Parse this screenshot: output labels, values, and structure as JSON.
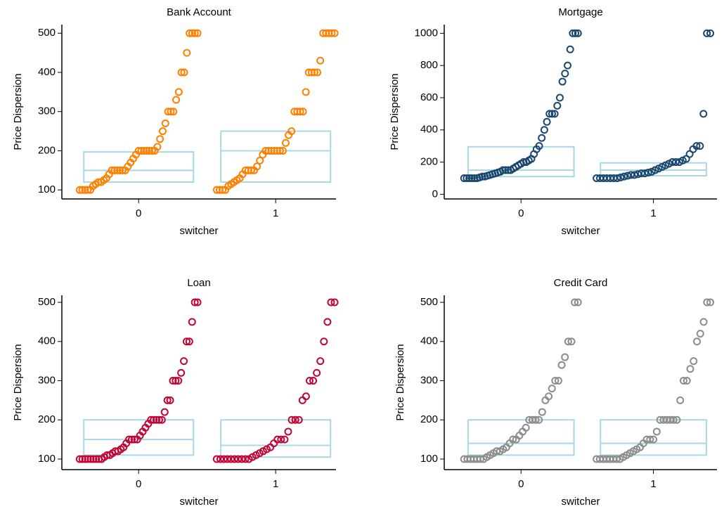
{
  "chart_data": [
    {
      "type": "strip",
      "title": "Bank Account",
      "xlabel": "switcher",
      "ylabel": "Price Dispersion",
      "color": "#ff8000",
      "box_color": "#a8d8e6",
      "xlim": [
        -0.56,
        1.44
      ],
      "xticks": [
        0,
        1
      ],
      "ylim": [
        77,
        522
      ],
      "yticks": [
        100,
        200,
        300,
        400,
        500
      ],
      "series": [
        {
          "values": [
            100,
            100,
            100,
            100,
            100,
            110,
            115,
            120,
            120,
            125,
            130,
            140,
            150,
            150,
            150,
            150,
            150,
            150,
            160,
            170,
            180,
            190,
            200,
            200,
            200,
            200,
            200,
            200,
            200,
            210,
            230,
            250,
            270,
            300,
            300,
            300,
            330,
            350,
            400,
            400,
            450,
            500,
            500,
            500,
            500
          ],
          "q1": 120,
          "median": 150,
          "q3": 197
        },
        {
          "values": [
            100,
            100,
            100,
            100,
            110,
            115,
            120,
            125,
            130,
            140,
            150,
            150,
            150,
            150,
            160,
            175,
            190,
            200,
            200,
            200,
            200,
            200,
            200,
            200,
            220,
            240,
            250,
            300,
            300,
            300,
            300,
            350,
            400,
            400,
            400,
            400,
            430,
            500,
            500,
            500,
            500,
            500
          ],
          "q1": 120,
          "median": 200,
          "q3": 250
        }
      ]
    },
    {
      "type": "strip",
      "title": "Mortgage",
      "xlabel": "switcher",
      "ylabel": "Price Dispersion",
      "color": "#1a476f",
      "box_color": "#a8d8e6",
      "xlim": [
        -0.58,
        1.48
      ],
      "xticks": [
        0,
        1
      ],
      "ylim": [
        -29,
        1054
      ],
      "yticks": [
        0,
        200,
        400,
        600,
        800,
        1000
      ],
      "series": [
        {
          "values": [
            100,
            100,
            100,
            100,
            100,
            100,
            105,
            110,
            110,
            115,
            120,
            125,
            130,
            135,
            140,
            150,
            150,
            150,
            150,
            160,
            170,
            180,
            190,
            200,
            200,
            210,
            220,
            250,
            280,
            300,
            350,
            400,
            450,
            500,
            500,
            500,
            550,
            600,
            700,
            750,
            800,
            900,
            1000,
            1000,
            1000
          ],
          "q1": 110,
          "median": 150,
          "q3": 295
        },
        {
          "values": [
            100,
            100,
            100,
            100,
            100,
            100,
            100,
            105,
            110,
            115,
            120,
            120,
            125,
            130,
            130,
            135,
            140,
            150,
            160,
            170,
            180,
            190,
            200,
            200,
            200,
            210,
            220,
            250,
            280,
            300,
            300,
            500,
            1000,
            1000
          ],
          "q1": 115,
          "median": 150,
          "q3": 195
        }
      ]
    },
    {
      "type": "strip",
      "title": "Loan",
      "xlabel": "switcher",
      "ylabel": "Price Dispersion",
      "color": "#c10534",
      "box_color": "#a8d8e6",
      "xlim": [
        -0.56,
        1.44
      ],
      "xticks": [
        0,
        1
      ],
      "ylim": [
        73,
        518
      ],
      "yticks": [
        100,
        200,
        300,
        400,
        500
      ],
      "series": [
        {
          "values": [
            100,
            100,
            100,
            100,
            100,
            100,
            100,
            100,
            100,
            105,
            110,
            110,
            115,
            120,
            120,
            125,
            130,
            140,
            150,
            150,
            150,
            150,
            160,
            170,
            180,
            190,
            200,
            200,
            200,
            200,
            200,
            220,
            250,
            250,
            300,
            300,
            300,
            320,
            350,
            400,
            400,
            450,
            500,
            500
          ],
          "q1": 110,
          "median": 150,
          "q3": 200
        },
        {
          "values": [
            100,
            100,
            100,
            100,
            100,
            100,
            100,
            100,
            100,
            100,
            105,
            110,
            115,
            120,
            125,
            130,
            140,
            150,
            150,
            150,
            170,
            200,
            200,
            200,
            250,
            260,
            300,
            300,
            320,
            350,
            400,
            450,
            500,
            500
          ],
          "q1": 105,
          "median": 135,
          "q3": 200
        }
      ]
    },
    {
      "type": "strip",
      "title": "Credit Card",
      "xlabel": "switcher",
      "ylabel": "Price Dispersion",
      "color": "#8c8c8c",
      "box_color": "#a8d8e6",
      "xlim": [
        -0.58,
        1.48
      ],
      "xticks": [
        0,
        1
      ],
      "ylim": [
        73,
        518
      ],
      "yticks": [
        100,
        200,
        300,
        400,
        500
      ],
      "series": [
        {
          "values": [
            100,
            100,
            100,
            100,
            100,
            100,
            100,
            105,
            110,
            115,
            120,
            120,
            125,
            130,
            140,
            150,
            150,
            160,
            170,
            180,
            200,
            200,
            200,
            200,
            220,
            250,
            260,
            280,
            300,
            300,
            340,
            360,
            400,
            400,
            500,
            500
          ],
          "q1": 110,
          "median": 140,
          "q3": 200
        },
        {
          "values": [
            100,
            100,
            100,
            100,
            100,
            100,
            100,
            100,
            105,
            110,
            115,
            120,
            125,
            130,
            140,
            150,
            150,
            150,
            170,
            200,
            200,
            200,
            200,
            200,
            200,
            250,
            300,
            300,
            330,
            350,
            400,
            420,
            450,
            500,
            500
          ],
          "q1": 110,
          "median": 140,
          "q3": 200
        }
      ]
    }
  ]
}
